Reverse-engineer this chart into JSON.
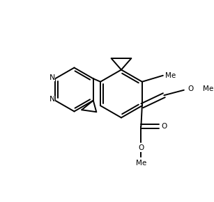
{
  "bg_color": "#ffffff",
  "line_color": "#000000",
  "lw": 1.4,
  "figsize": [
    3.07,
    2.91
  ],
  "dpi": 100,
  "xlim": [
    0,
    10
  ],
  "ylim": [
    0,
    9.5
  ]
}
